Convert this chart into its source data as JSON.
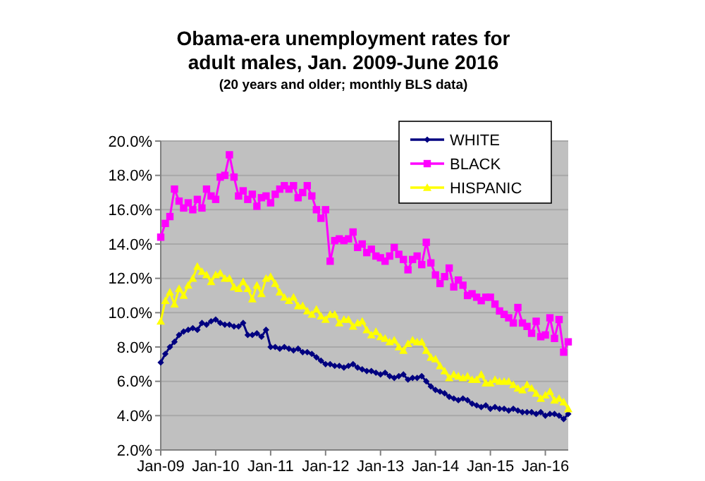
{
  "chart_data": {
    "type": "line",
    "title": "Obama-era unemployment rates for\nadult males, Jan. 2009-June 2016",
    "subtitle": "(20 years and older; monthly BLS data)",
    "categories": [
      "Jan-09",
      null,
      null,
      null,
      null,
      null,
      null,
      null,
      null,
      null,
      null,
      null,
      "Jan-10",
      null,
      null,
      null,
      null,
      null,
      null,
      null,
      null,
      null,
      null,
      null,
      "Jan-11",
      null,
      null,
      null,
      null,
      null,
      null,
      null,
      null,
      null,
      null,
      null,
      "Jan-12",
      null,
      null,
      null,
      null,
      null,
      null,
      null,
      null,
      null,
      null,
      null,
      "Jan-13",
      null,
      null,
      null,
      null,
      null,
      null,
      null,
      null,
      null,
      null,
      null,
      "Jan-14",
      null,
      null,
      null,
      null,
      null,
      null,
      null,
      null,
      null,
      null,
      null,
      "Jan-15",
      null,
      null,
      null,
      null,
      null,
      null,
      null,
      null,
      null,
      null,
      null,
      "Jan-16",
      null,
      null,
      null,
      null,
      null
    ],
    "series": [
      {
        "name": "WHITE",
        "color": "#000080",
        "marker": "diamond",
        "values": [
          7.1,
          7.6,
          8.0,
          8.3,
          8.7,
          8.9,
          9.0,
          9.1,
          9.0,
          9.4,
          9.3,
          9.5,
          9.6,
          9.4,
          9.3,
          9.3,
          9.2,
          9.2,
          9.4,
          8.7,
          8.7,
          8.8,
          8.6,
          9.0,
          8.0,
          8.0,
          7.9,
          8.0,
          7.9,
          7.8,
          7.9,
          7.7,
          7.7,
          7.6,
          7.4,
          7.2,
          7.0,
          7.0,
          6.9,
          6.9,
          6.8,
          6.9,
          7.0,
          6.8,
          6.7,
          6.6,
          6.6,
          6.5,
          6.4,
          6.5,
          6.3,
          6.2,
          6.3,
          6.4,
          6.1,
          6.2,
          6.2,
          6.3,
          6.0,
          5.7,
          5.5,
          5.4,
          5.3,
          5.1,
          5.0,
          4.9,
          5.0,
          4.9,
          4.7,
          4.6,
          4.5,
          4.6,
          4.4,
          4.5,
          4.4,
          4.4,
          4.3,
          4.4,
          4.3,
          4.2,
          4.2,
          4.2,
          4.1,
          4.2,
          4.0,
          4.1,
          4.1,
          4.0,
          3.8,
          4.1
        ]
      },
      {
        "name": "BLACK",
        "color": "#ff00ff",
        "marker": "square",
        "values": [
          14.4,
          15.2,
          15.6,
          17.2,
          16.5,
          16.1,
          16.4,
          16.0,
          16.6,
          16.1,
          17.2,
          16.8,
          16.6,
          17.9,
          18.0,
          19.2,
          17.9,
          16.8,
          17.1,
          16.6,
          16.9,
          16.2,
          16.7,
          16.8,
          16.4,
          16.9,
          17.2,
          17.4,
          17.2,
          17.4,
          16.7,
          17.0,
          17.4,
          16.8,
          16.0,
          15.5,
          16.0,
          13.0,
          14.2,
          14.3,
          14.2,
          14.3,
          14.7,
          13.8,
          14.0,
          13.5,
          13.7,
          13.3,
          13.2,
          13.0,
          13.3,
          13.8,
          13.4,
          13.1,
          12.5,
          13.1,
          13.3,
          12.8,
          14.1,
          12.9,
          12.2,
          11.7,
          12.1,
          12.6,
          11.5,
          11.9,
          11.6,
          11.0,
          11.1,
          10.9,
          10.7,
          10.9,
          10.9,
          10.5,
          10.1,
          9.9,
          9.7,
          9.4,
          10.3,
          9.4,
          9.2,
          8.8,
          9.5,
          8.6,
          8.7,
          9.7,
          8.5,
          9.6,
          7.7,
          8.3
        ]
      },
      {
        "name": "HISPANIC",
        "color": "#ffff00",
        "marker": "triangle",
        "values": [
          9.5,
          10.7,
          11.2,
          10.5,
          11.4,
          11.0,
          11.6,
          12.0,
          12.7,
          12.4,
          12.2,
          11.8,
          12.2,
          12.3,
          12.0,
          12.0,
          11.5,
          11.4,
          11.8,
          11.4,
          10.8,
          11.6,
          11.1,
          12.0,
          12.1,
          11.7,
          11.2,
          10.9,
          10.7,
          10.9,
          10.4,
          10.4,
          10.1,
          9.9,
          10.2,
          9.8,
          9.6,
          9.9,
          9.9,
          9.4,
          9.6,
          9.6,
          9.2,
          9.4,
          9.5,
          9.0,
          8.7,
          8.9,
          8.6,
          8.5,
          8.3,
          8.4,
          8.0,
          7.8,
          8.2,
          8.4,
          8.3,
          8.3,
          7.8,
          7.4,
          7.3,
          6.9,
          6.6,
          6.2,
          6.4,
          6.3,
          6.2,
          6.3,
          6.1,
          6.1,
          6.4,
          5.9,
          5.9,
          6.1,
          6.0,
          6.0,
          6.0,
          5.8,
          5.6,
          5.5,
          5.8,
          5.6,
          5.3,
          5.0,
          5.2,
          5.4,
          4.9,
          5.0,
          4.8,
          4.4
        ]
      }
    ],
    "ylim": [
      2,
      20
    ],
    "yticks": [
      {
        "value": 2,
        "label": "2.0%"
      },
      {
        "value": 4,
        "label": "4.0%"
      },
      {
        "value": 6,
        "label": "6.0%"
      },
      {
        "value": 8,
        "label": "8.0%"
      },
      {
        "value": 10,
        "label": "10.0%"
      },
      {
        "value": 12,
        "label": "12.0%"
      },
      {
        "value": 14,
        "label": "14.0%"
      },
      {
        "value": 16,
        "label": "16.0%"
      },
      {
        "value": 18,
        "label": "18.0%"
      },
      {
        "value": 20,
        "label": "20.0%"
      }
    ],
    "grid": "y",
    "legend": "top right",
    "line_style": "solid"
  }
}
